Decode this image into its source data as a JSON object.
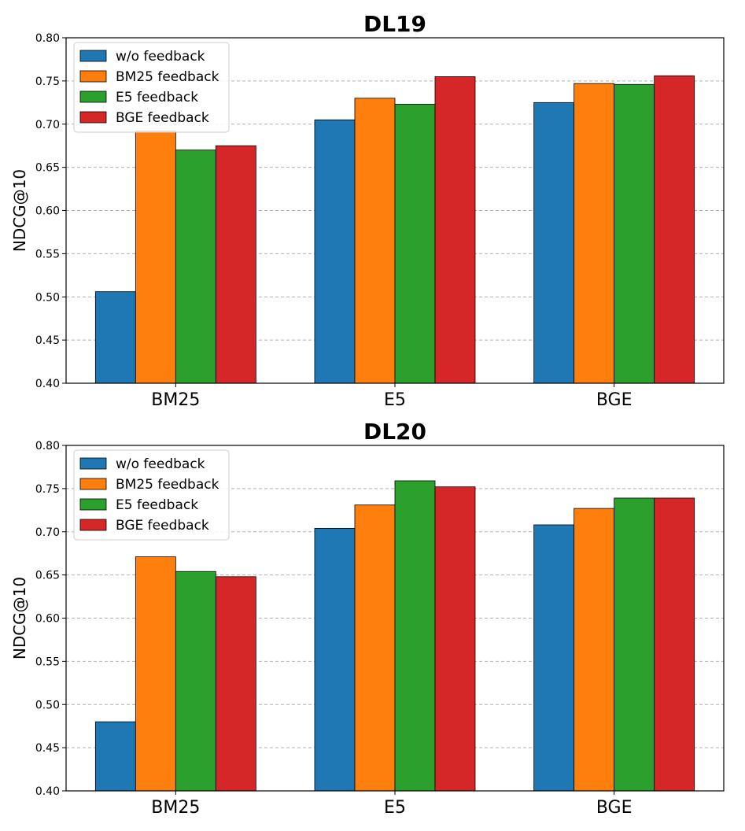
{
  "chart_data": [
    {
      "type": "bar",
      "title": "DL19",
      "xlabel": "",
      "ylabel": "NDCG@10",
      "ylim": [
        0.4,
        0.8
      ],
      "yticks": [
        "0.40",
        "0.45",
        "0.50",
        "0.55",
        "0.60",
        "0.65",
        "0.70",
        "0.75",
        "0.80"
      ],
      "grid": true,
      "legend_position": "top-left",
      "categories": [
        "BM25",
        "E5",
        "BGE"
      ],
      "series": [
        {
          "name": "w/o feedback",
          "color": "#1f77b4",
          "values": [
            0.506,
            0.705,
            0.725
          ]
        },
        {
          "name": "BM25 feedback",
          "color": "#ff7f0e",
          "values": [
            0.692,
            0.73,
            0.747
          ]
        },
        {
          "name": "E5 feedback",
          "color": "#2ca02c",
          "values": [
            0.67,
            0.723,
            0.746
          ]
        },
        {
          "name": "BGE feedback",
          "color": "#d62728",
          "values": [
            0.675,
            0.755,
            0.756
          ]
        }
      ]
    },
    {
      "type": "bar",
      "title": "DL20",
      "xlabel": "",
      "ylabel": "NDCG@10",
      "ylim": [
        0.4,
        0.8
      ],
      "yticks": [
        "0.40",
        "0.45",
        "0.50",
        "0.55",
        "0.60",
        "0.65",
        "0.70",
        "0.75",
        "0.80"
      ],
      "grid": true,
      "legend_position": "top-left",
      "categories": [
        "BM25",
        "E5",
        "BGE"
      ],
      "series": [
        {
          "name": "w/o feedback",
          "color": "#1f77b4",
          "values": [
            0.48,
            0.704,
            0.708
          ]
        },
        {
          "name": "BM25 feedback",
          "color": "#ff7f0e",
          "values": [
            0.671,
            0.731,
            0.727
          ]
        },
        {
          "name": "E5 feedback",
          "color": "#2ca02c",
          "values": [
            0.654,
            0.759,
            0.739
          ]
        },
        {
          "name": "BGE feedback",
          "color": "#d62728",
          "values": [
            0.648,
            0.752,
            0.739
          ]
        }
      ]
    }
  ]
}
